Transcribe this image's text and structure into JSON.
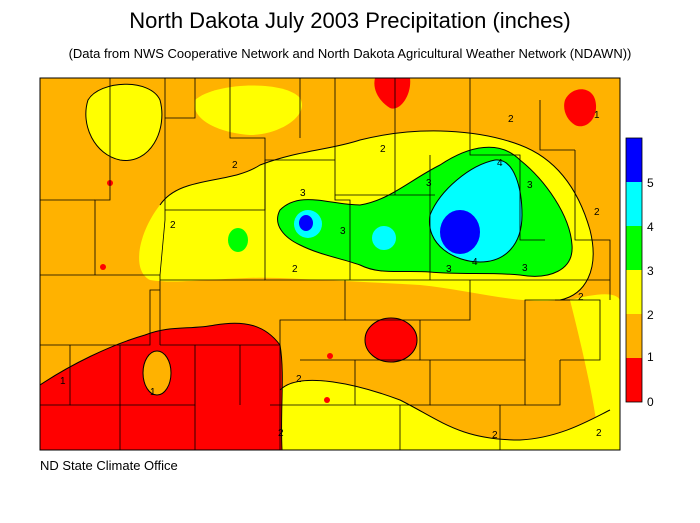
{
  "title": "North Dakota July 2003 Precipitation (inches)",
  "subtitle": "(Data from NWS Cooperative Network and North Dakota Agricultural Weather Network (NDAWN))",
  "credit": "ND State Climate Office",
  "legend": {
    "bins": [
      {
        "label": "0",
        "color": "#ff0000"
      },
      {
        "label": "1",
        "color": "#ffb200"
      },
      {
        "label": "2",
        "color": "#ffff00"
      },
      {
        "label": "3",
        "color": "#00ff00"
      },
      {
        "label": "4",
        "color": "#00ffff"
      },
      {
        "label": "5",
        "color": "#0000ff"
      }
    ]
  },
  "contour_labels": [
    "2",
    "2",
    "2",
    "2",
    "2",
    "2",
    "2",
    "3",
    "3",
    "3",
    "3",
    "3",
    "4",
    "4",
    "3",
    "1",
    "1",
    "2",
    "2",
    "2",
    "1",
    "2"
  ]
}
